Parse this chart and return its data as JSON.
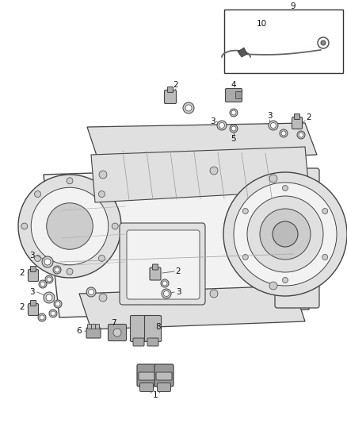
{
  "bg_color": "#ffffff",
  "lc": "#666666",
  "lc_dark": "#444444",
  "lc_light": "#888888",
  "fc_body": "#f2f2f2",
  "fc_dark": "#cccccc",
  "fc_mid": "#e0e0e0",
  "label_fs": 7.5,
  "leader_lw": 0.65,
  "fig_w": 4.38,
  "fig_h": 5.33,
  "dpi": 100
}
